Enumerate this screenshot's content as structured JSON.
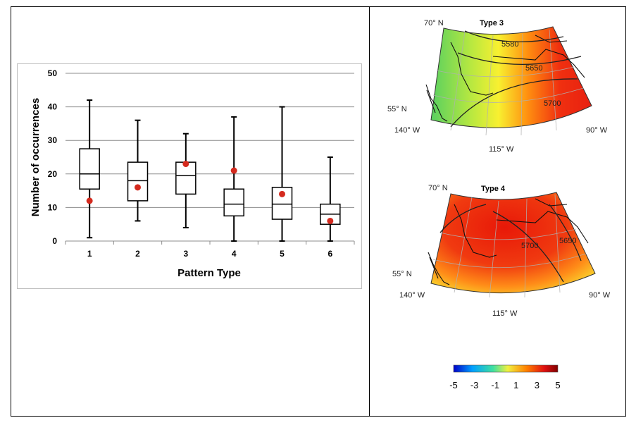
{
  "chart_data": {
    "type": "boxplot",
    "title": "",
    "xlabel": "Pattern Type",
    "ylabel": "Number of occurrences",
    "ylim": [
      0,
      50
    ],
    "yticks": [
      0,
      10,
      20,
      30,
      40,
      50
    ],
    "grid": true,
    "categories": [
      "1",
      "2",
      "3",
      "4",
      "5",
      "6"
    ],
    "boxes": [
      {
        "min": 1,
        "q1": 15.5,
        "median": 20,
        "q3": 27.5,
        "max": 42,
        "point": 12
      },
      {
        "min": 6,
        "q1": 12,
        "median": 18,
        "q3": 23.5,
        "max": 36,
        "point": 16
      },
      {
        "min": 4,
        "q1": 14,
        "median": 19.5,
        "q3": 23.5,
        "max": 32,
        "point": 23
      },
      {
        "min": 0,
        "q1": 7.5,
        "median": 11,
        "q3": 15.5,
        "max": 37,
        "point": 21
      },
      {
        "min": 0,
        "q1": 6.5,
        "median": 11,
        "q3": 16,
        "max": 40,
        "point": 14
      },
      {
        "min": 0,
        "q1": 5,
        "median": 8,
        "q3": 11,
        "max": 25,
        "point": 6
      }
    ],
    "point_color": "#d42a1e"
  },
  "maps": [
    {
      "title": "Type 3",
      "lat_labels": [
        "70° N",
        "55° N"
      ],
      "lon_labels": [
        "140° W",
        "115° W",
        "90° W"
      ],
      "contour_labels": [
        "5580",
        "5650",
        "5700"
      ]
    },
    {
      "title": "Type 4",
      "lat_labels": [
        "70° N",
        "55° N"
      ],
      "lon_labels": [
        "140° W",
        "115° W",
        "90° W"
      ],
      "contour_labels": [
        "5700",
        "5650"
      ]
    }
  ],
  "colorbar": {
    "ticks": [
      "-5",
      "-3",
      "-1",
      "1",
      "3",
      "5"
    ],
    "colors": [
      "#0000c8",
      "#00a0ff",
      "#40e0a0",
      "#f0f040",
      "#ff8000",
      "#e01010",
      "#800000"
    ]
  }
}
